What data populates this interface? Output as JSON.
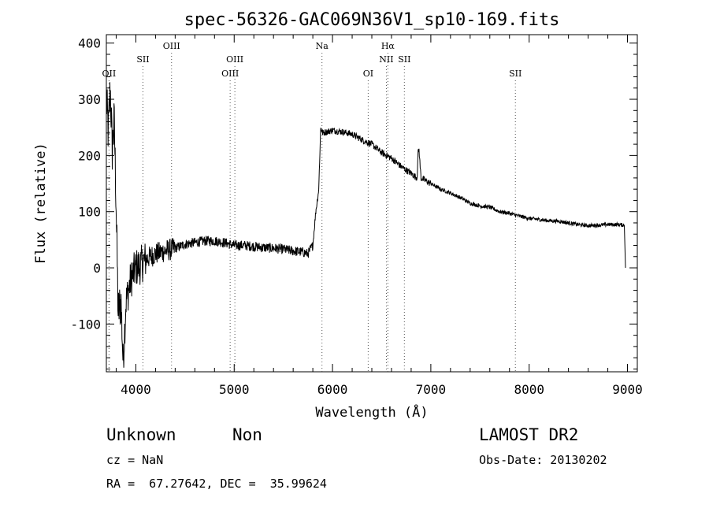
{
  "chart_data": {
    "type": "line",
    "title": "spec-56326-GAC069N36V1_sp10-169.fits",
    "xlabel": "Wavelength (Å)",
    "ylabel": "Flux (relative)",
    "xlim": [
      3700,
      9100
    ],
    "ylim": [
      -185,
      415
    ],
    "xticks": [
      4000,
      5000,
      6000,
      7000,
      8000,
      9000
    ],
    "yticks": [
      -100,
      0,
      100,
      200,
      300,
      400
    ],
    "grid": false,
    "line_color": "#000000",
    "spectrum_anchors": [
      [
        3700,
        300
      ],
      [
        3720,
        240
      ],
      [
        3740,
        320
      ],
      [
        3760,
        210
      ],
      [
        3780,
        260
      ],
      [
        3800,
        110
      ],
      [
        3820,
        -80
      ],
      [
        3850,
        -60
      ],
      [
        3870,
        -170
      ],
      [
        3900,
        -60
      ],
      [
        3950,
        -20
      ],
      [
        4000,
        0
      ],
      [
        4050,
        5
      ],
      [
        4100,
        15
      ],
      [
        4200,
        25
      ],
      [
        4300,
        30
      ],
      [
        4400,
        35
      ],
      [
        4500,
        42
      ],
      [
        4600,
        45
      ],
      [
        4700,
        48
      ],
      [
        4800,
        48
      ],
      [
        4900,
        45
      ],
      [
        5000,
        40
      ],
      [
        5100,
        40
      ],
      [
        5200,
        38
      ],
      [
        5300,
        36
      ],
      [
        5400,
        35
      ],
      [
        5500,
        33
      ],
      [
        5600,
        30
      ],
      [
        5700,
        28
      ],
      [
        5750,
        25
      ],
      [
        5800,
        40
      ],
      [
        5830,
        100
      ],
      [
        5860,
        140
      ],
      [
        5880,
        250
      ],
      [
        5900,
        240
      ],
      [
        6000,
        245
      ],
      [
        6100,
        242
      ],
      [
        6200,
        238
      ],
      [
        6300,
        228
      ],
      [
        6400,
        220
      ],
      [
        6500,
        205
      ],
      [
        6600,
        195
      ],
      [
        6700,
        180
      ],
      [
        6800,
        168
      ],
      [
        6860,
        160
      ],
      [
        6870,
        205
      ],
      [
        6880,
        210
      ],
      [
        6900,
        160
      ],
      [
        7000,
        150
      ],
      [
        7100,
        140
      ],
      [
        7200,
        133
      ],
      [
        7300,
        125
      ],
      [
        7400,
        115
      ],
      [
        7500,
        110
      ],
      [
        7600,
        108
      ],
      [
        7700,
        100
      ],
      [
        7800,
        97
      ],
      [
        7900,
        92
      ],
      [
        8000,
        88
      ],
      [
        8100,
        86
      ],
      [
        8200,
        84
      ],
      [
        8300,
        83
      ],
      [
        8400,
        80
      ],
      [
        8500,
        77
      ],
      [
        8600,
        75
      ],
      [
        8700,
        76
      ],
      [
        8800,
        77
      ],
      [
        8900,
        77
      ],
      [
        8970,
        76
      ],
      [
        8980,
        0
      ]
    ],
    "lines": [
      {
        "label": "OII",
        "wavelength": 3727,
        "row": 3
      },
      {
        "label": "SII",
        "wavelength": 4072,
        "row": 2
      },
      {
        "label": "OIII",
        "wavelength": 4363,
        "row": 1
      },
      {
        "label": "OIII",
        "wavelength": 4959,
        "row": 3
      },
      {
        "label": "OIII",
        "wavelength": 5007,
        "row": 2
      },
      {
        "label": "Na",
        "wavelength": 5893,
        "row": 1
      },
      {
        "label": "OI",
        "wavelength": 6363,
        "row": 3
      },
      {
        "label": "NII",
        "wavelength": 6548,
        "row": 2
      },
      {
        "label": "Hα",
        "wavelength": 6563,
        "row": 1
      },
      {
        "label": "SII",
        "wavelength": 6731,
        "row": 2
      },
      {
        "label": "SII",
        "wavelength": 7860,
        "row": 3
      }
    ]
  },
  "info": {
    "class": "Unknown",
    "subclass": "Non",
    "survey": "LAMOST DR2",
    "redshift": "cz = NaN",
    "obs_date": "Obs-Date: 20130202",
    "coords": "RA =  67.27642, DEC =  35.99624"
  }
}
